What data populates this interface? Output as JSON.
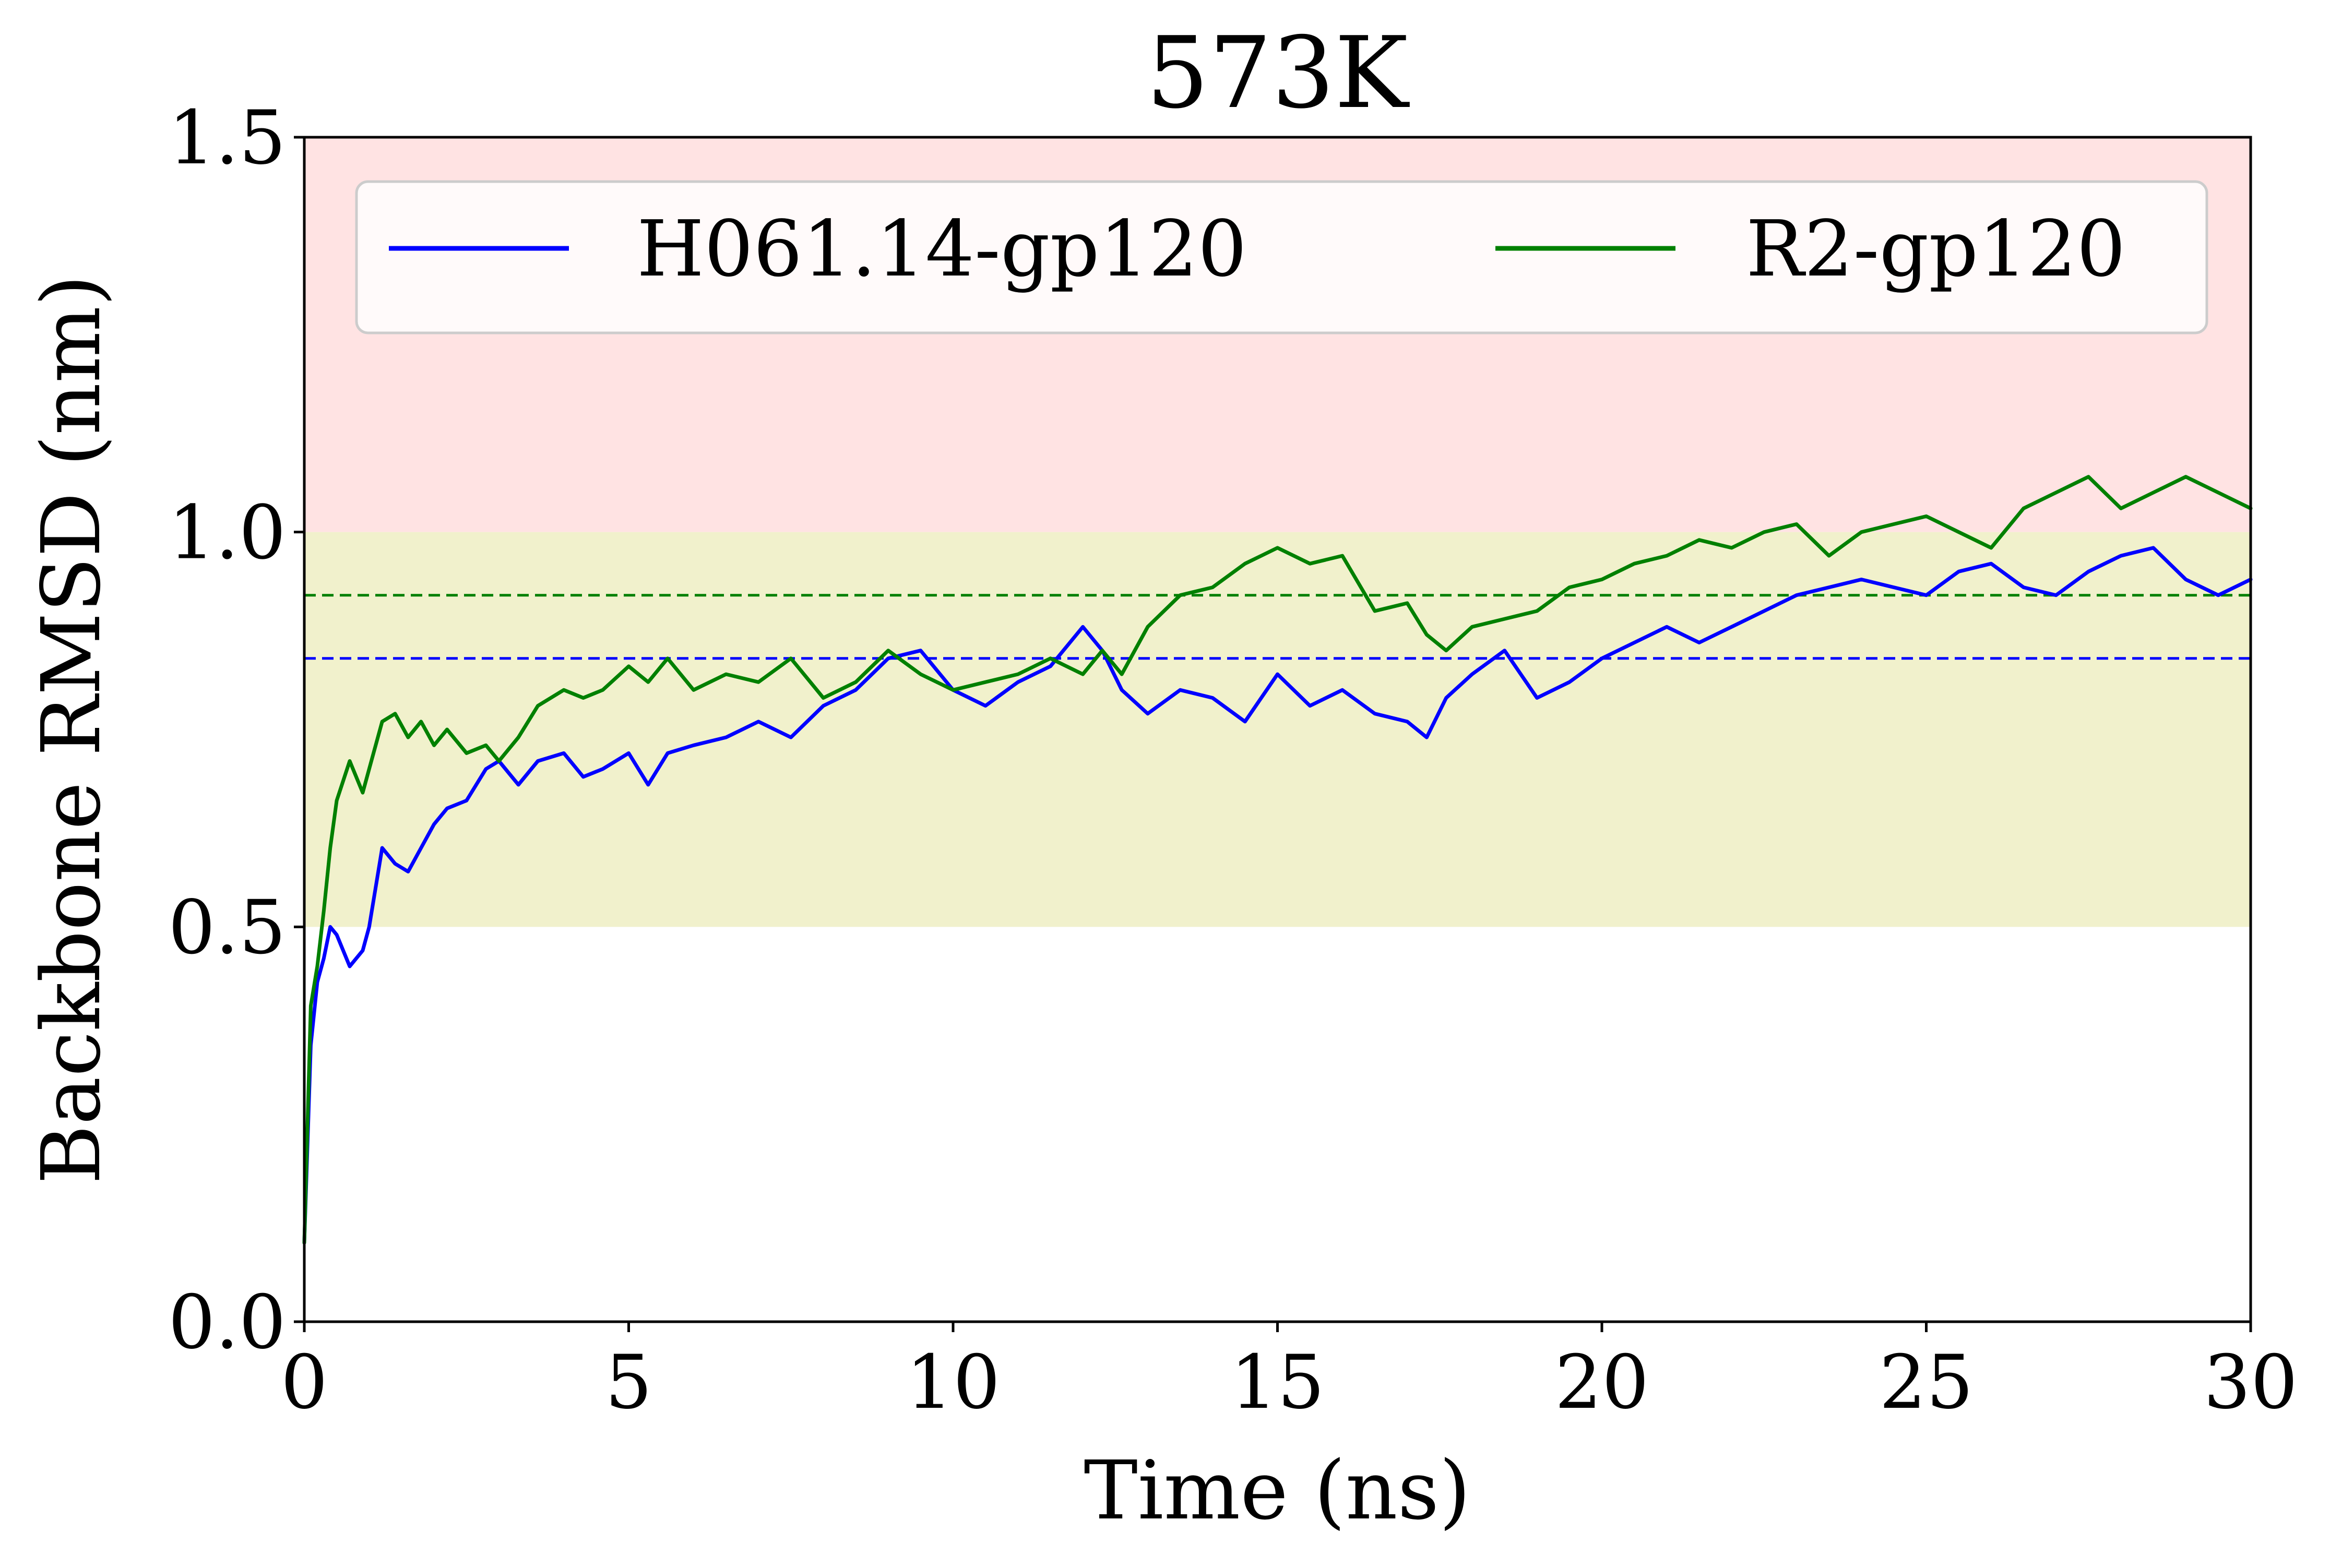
{
  "chart_data": {
    "type": "line",
    "title": "573K",
    "xlabel": "Time (ns)",
    "ylabel": "Backbone RMSD (nm)",
    "xlim": [
      0,
      30
    ],
    "ylim": [
      0.0,
      1.5
    ],
    "x_ticks": [
      0,
      5,
      10,
      15,
      20,
      25,
      30
    ],
    "x_tick_labels": [
      "0",
      "5",
      "10",
      "15",
      "20",
      "25",
      "30"
    ],
    "y_ticks": [
      0.0,
      0.5,
      1.0,
      1.5
    ],
    "y_tick_labels": [
      "0.0",
      "0.5",
      "1.0",
      "1.5"
    ],
    "grid": false,
    "legend_position": "top",
    "bands": [
      {
        "y0": 1.0,
        "y1": 1.5,
        "color": "#ffe3e3"
      },
      {
        "y0": 0.5,
        "y1": 1.0,
        "color": "#f1f1cc"
      }
    ],
    "series": [
      {
        "name": "H061.14-gp120",
        "color": "#0000ff",
        "mean": 0.84,
        "x": [
          0,
          0.1,
          0.2,
          0.3,
          0.4,
          0.5,
          0.7,
          0.9,
          1.0,
          1.2,
          1.4,
          1.6,
          1.8,
          2.0,
          2.2,
          2.5,
          2.8,
          3.0,
          3.3,
          3.6,
          4.0,
          4.3,
          4.6,
          5.0,
          5.3,
          5.6,
          6.0,
          6.5,
          7.0,
          7.5,
          8.0,
          8.5,
          9.0,
          9.5,
          10.0,
          10.5,
          11.0,
          11.5,
          12.0,
          12.3,
          12.6,
          13.0,
          13.5,
          14.0,
          14.5,
          15.0,
          15.5,
          16.0,
          16.5,
          17.0,
          17.3,
          17.6,
          18.0,
          18.5,
          19.0,
          19.5,
          20.0,
          20.5,
          21.0,
          21.5,
          22.0,
          22.5,
          23.0,
          23.5,
          24.0,
          24.5,
          25.0,
          25.5,
          26.0,
          26.5,
          27.0,
          27.5,
          28.0,
          28.5,
          29.0,
          29.5,
          30.0
        ],
        "y": [
          0.1,
          0.35,
          0.43,
          0.46,
          0.5,
          0.49,
          0.45,
          0.47,
          0.5,
          0.6,
          0.58,
          0.57,
          0.6,
          0.63,
          0.65,
          0.66,
          0.7,
          0.71,
          0.68,
          0.71,
          0.72,
          0.69,
          0.7,
          0.72,
          0.68,
          0.72,
          0.73,
          0.74,
          0.76,
          0.74,
          0.78,
          0.8,
          0.84,
          0.85,
          0.8,
          0.78,
          0.81,
          0.83,
          0.88,
          0.85,
          0.8,
          0.77,
          0.8,
          0.79,
          0.76,
          0.82,
          0.78,
          0.8,
          0.77,
          0.76,
          0.74,
          0.79,
          0.82,
          0.85,
          0.79,
          0.81,
          0.84,
          0.86,
          0.88,
          0.86,
          0.88,
          0.9,
          0.92,
          0.93,
          0.94,
          0.93,
          0.92,
          0.95,
          0.96,
          0.93,
          0.92,
          0.95,
          0.97,
          0.98,
          0.94,
          0.92,
          0.94
        ]
      },
      {
        "name": "R2-gp120",
        "color": "#008000",
        "mean": 0.92,
        "x": [
          0,
          0.1,
          0.2,
          0.3,
          0.4,
          0.5,
          0.7,
          0.9,
          1.0,
          1.2,
          1.4,
          1.6,
          1.8,
          2.0,
          2.2,
          2.5,
          2.8,
          3.0,
          3.3,
          3.6,
          4.0,
          4.3,
          4.6,
          5.0,
          5.3,
          5.6,
          6.0,
          6.5,
          7.0,
          7.5,
          8.0,
          8.5,
          9.0,
          9.5,
          10.0,
          10.5,
          11.0,
          11.5,
          12.0,
          12.3,
          12.6,
          13.0,
          13.5,
          14.0,
          14.5,
          15.0,
          15.5,
          16.0,
          16.5,
          17.0,
          17.3,
          17.6,
          18.0,
          18.5,
          19.0,
          19.5,
          20.0,
          20.5,
          21.0,
          21.5,
          22.0,
          22.5,
          23.0,
          23.5,
          24.0,
          24.5,
          25.0,
          25.5,
          26.0,
          26.5,
          27.0,
          27.5,
          28.0,
          28.5,
          29.0,
          29.5,
          30.0
        ],
        "y": [
          0.1,
          0.4,
          0.45,
          0.52,
          0.6,
          0.66,
          0.71,
          0.67,
          0.7,
          0.76,
          0.77,
          0.74,
          0.76,
          0.73,
          0.75,
          0.72,
          0.73,
          0.71,
          0.74,
          0.78,
          0.8,
          0.79,
          0.8,
          0.83,
          0.81,
          0.84,
          0.8,
          0.82,
          0.81,
          0.84,
          0.79,
          0.81,
          0.85,
          0.82,
          0.8,
          0.81,
          0.82,
          0.84,
          0.82,
          0.85,
          0.82,
          0.88,
          0.92,
          0.93,
          0.96,
          0.98,
          0.96,
          0.97,
          0.9,
          0.91,
          0.87,
          0.85,
          0.88,
          0.89,
          0.9,
          0.93,
          0.94,
          0.96,
          0.97,
          0.99,
          0.98,
          1.0,
          1.01,
          0.97,
          1.0,
          1.01,
          1.02,
          1.0,
          0.98,
          1.03,
          1.05,
          1.07,
          1.03,
          1.05,
          1.07,
          1.05,
          1.03
        ]
      }
    ]
  }
}
